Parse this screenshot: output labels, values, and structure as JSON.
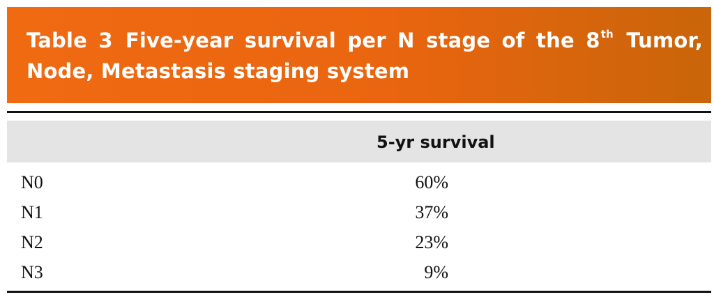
{
  "caption": {
    "label": "Table 3",
    "title_part1": "Five-year survival per N stage of the 8",
    "superscript": "th",
    "title_part2": " Tumor, Node, Metastasis staging system"
  },
  "table": {
    "column_headers": [
      "",
      "5-yr survival"
    ],
    "rows": [
      {
        "stage": "N0",
        "survival": "60%"
      },
      {
        "stage": "N1",
        "survival": "37%"
      },
      {
        "stage": "N2",
        "survival": "23%"
      },
      {
        "stage": "N3",
        "survival": "9%"
      }
    ]
  },
  "colors": {
    "caption_background": "#e9650f",
    "caption_text": "#ffffff",
    "header_band": "#e4e4e4",
    "rules": "#111111"
  }
}
